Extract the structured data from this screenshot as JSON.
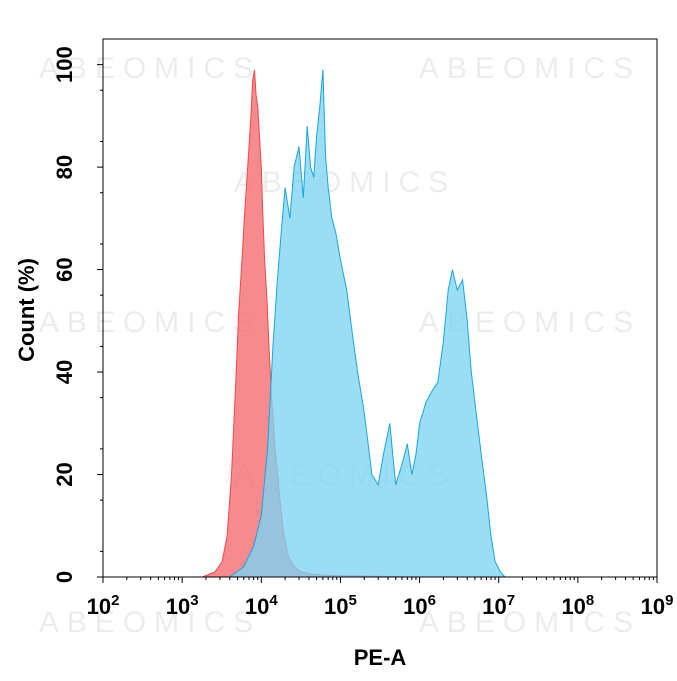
{
  "watermark": "ABEOMICS",
  "chart_data": {
    "type": "area",
    "xlabel": "PE-A",
    "ylabel": "Count (%)",
    "xscale": "log",
    "xlim": [
      100,
      1000000000
    ],
    "ylim": [
      0,
      105
    ],
    "x_ticks": [
      {
        "base": "10",
        "exp": "2",
        "value": 100
      },
      {
        "base": "10",
        "exp": "3",
        "value": 1000
      },
      {
        "base": "10",
        "exp": "4",
        "value": 10000
      },
      {
        "base": "10",
        "exp": "5",
        "value": 100000
      },
      {
        "base": "10",
        "exp": "6",
        "value": 1000000
      },
      {
        "base": "10",
        "exp": "7",
        "value": 10000000
      },
      {
        "base": "10",
        "exp": "8",
        "value": 100000000
      },
      {
        "base": "10",
        "exp": "9",
        "value": 1000000000
      }
    ],
    "y_ticks": [
      "0",
      "20",
      "40",
      "60",
      "80",
      "100"
    ],
    "grid": false,
    "series": [
      {
        "color": "#f0484c",
        "fill": "#f5767a",
        "x": [
          1800,
          2600,
          3200,
          3700,
          4200,
          4700,
          5200,
          5700,
          6100,
          6600,
          7000,
          7400,
          7800,
          8200,
          8600,
          9000,
          9500,
          10000,
          10500,
          11000,
          11800,
          12600,
          13500,
          15000,
          17000,
          19000,
          22000,
          26000,
          32000,
          45000,
          80000,
          200000,
          1000000
        ],
        "y": [
          0,
          1,
          3,
          8,
          20,
          36,
          52,
          62,
          70,
          78,
          84,
          90,
          97,
          99,
          94,
          92,
          86,
          80,
          70,
          62,
          54,
          44,
          35,
          25,
          16,
          9,
          4,
          2,
          1,
          0.5,
          0.3,
          0.2,
          0
        ]
      },
      {
        "color": "#1aa6d8",
        "fill": "#7dd3f2",
        "x": [
          4000,
          6000,
          8000,
          10000,
          12000,
          14000,
          16000,
          18000,
          20000,
          23000,
          26000,
          30000,
          34000,
          38000,
          42000,
          46000,
          50000,
          55000,
          60000,
          65000,
          70000,
          78000,
          88000,
          100000,
          120000,
          140000,
          165000,
          200000,
          250000,
          300000,
          350000,
          420000,
          500000,
          600000,
          700000,
          800000,
          900000,
          1000000,
          1200000,
          1400000,
          1700000,
          2000000,
          2300000,
          2600000,
          3000000,
          3500000,
          4000000,
          4500000,
          5200000,
          6000000,
          7000000,
          8000000,
          9000000,
          10500000,
          12000000
        ],
        "y": [
          0,
          2,
          6,
          12,
          25,
          45,
          58,
          68,
          76,
          70,
          80,
          84,
          74,
          88,
          80,
          78,
          86,
          92,
          99,
          82,
          76,
          70,
          67,
          62,
          56,
          48,
          40,
          32,
          20,
          18,
          24,
          30,
          18,
          22,
          26,
          20,
          24,
          30,
          34,
          36,
          38,
          46,
          56,
          60,
          56,
          58,
          50,
          40,
          32,
          24,
          16,
          8,
          3,
          1,
          0
        ]
      }
    ]
  }
}
